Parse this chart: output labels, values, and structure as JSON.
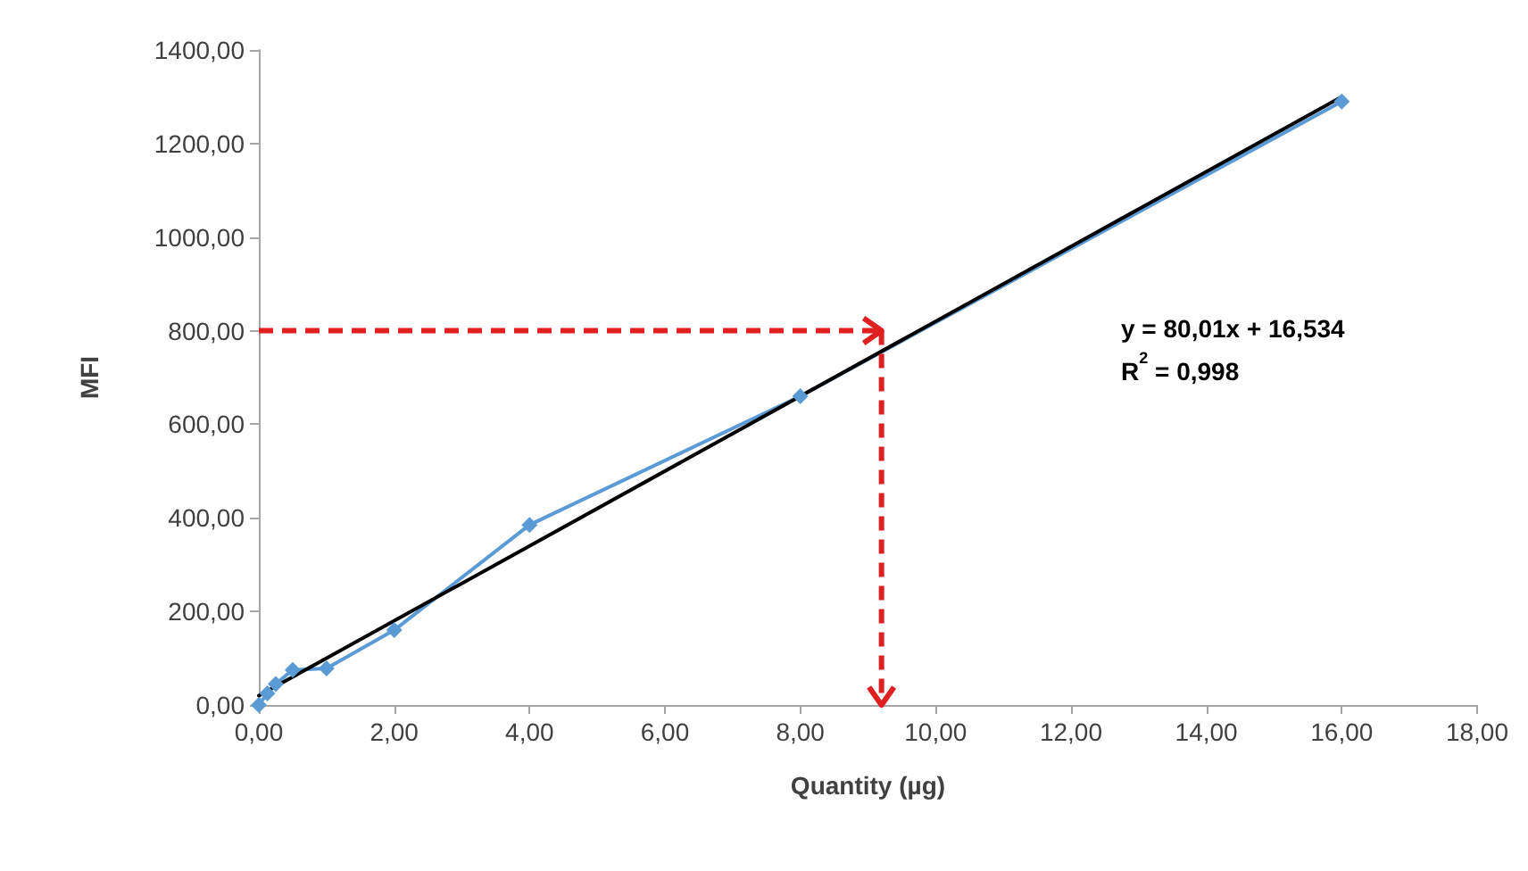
{
  "chart_data": {
    "type": "line",
    "xlabel": "Quantity (µg)",
    "ylabel": "MFI",
    "x": [
      0,
      0.125,
      0.25,
      0.5,
      1,
      2,
      4,
      8,
      16
    ],
    "series": [
      {
        "color": "#5b9bd5",
        "values": [
          0,
          25,
          45,
          75,
          78,
          160,
          385,
          660,
          1290
        ],
        "marker": "diamond"
      },
      {
        "type": "line",
        "color": "#000000",
        "x": [
          0,
          16
        ],
        "values": [
          20,
          1300
        ],
        "marker": "none"
      }
    ],
    "xlim": [
      0,
      18
    ],
    "xticks": [
      {
        "value": 0,
        "label": "0,00"
      },
      {
        "value": 2,
        "label": "2,00"
      },
      {
        "value": 4,
        "label": "4,00"
      },
      {
        "value": 6,
        "label": "6,00"
      },
      {
        "value": 8,
        "label": "8,00"
      },
      {
        "value": 10,
        "label": "10,00"
      },
      {
        "value": 12,
        "label": "12,00"
      },
      {
        "value": 14,
        "label": "14,00"
      },
      {
        "value": 16,
        "label": "16,00"
      },
      {
        "value": 18,
        "label": "18,00"
      }
    ],
    "ylim": [
      0,
      1400
    ],
    "yticks": [
      {
        "value": 0,
        "label": "0,00"
      },
      {
        "value": 200,
        "label": "200,00"
      },
      {
        "value": 400,
        "label": "400,00"
      },
      {
        "value": 600,
        "label": "600,00"
      },
      {
        "value": 800,
        "label": "800,00"
      },
      {
        "value": 1000,
        "label": "1000,00"
      },
      {
        "value": 1200,
        "label": "1200,00"
      },
      {
        "value": 1400,
        "label": "1400,00"
      }
    ],
    "ref_lines": [
      {
        "axis": "y",
        "value": 800,
        "color": "#e02020",
        "line_style": "dashed"
      },
      {
        "axis": "x",
        "value": 9.2,
        "color": "#e02020",
        "line_style": "dashed"
      }
    ],
    "annotations": [
      "y = 80,01x + 16,534",
      "R$^{2}$ = 0,998"
    ],
    "grid": false
  }
}
